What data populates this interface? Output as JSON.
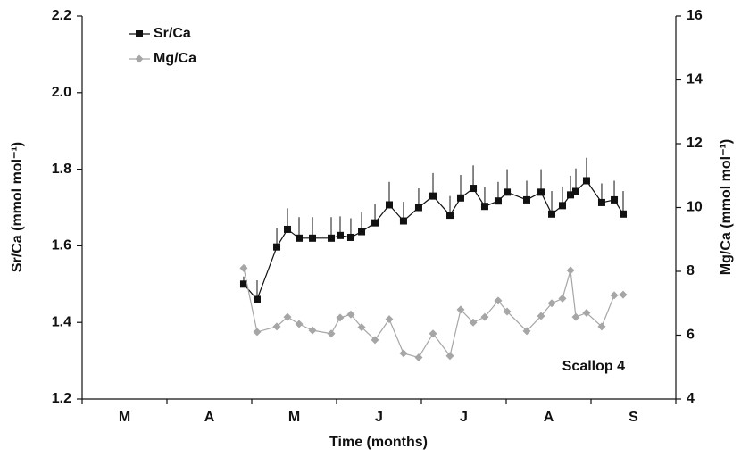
{
  "chart_data": {
    "type": "line",
    "xlabel": "Time (months)",
    "ylabel": "Sr/Ca (mmol mol⁻¹)",
    "y2label": "Mg/Ca (mmol mol⁻¹)",
    "annotation": "Scallop 4",
    "xlim": [
      0,
      7
    ],
    "xticks": [
      {
        "value": 0.5,
        "label": "M"
      },
      {
        "value": 1.5,
        "label": "A"
      },
      {
        "value": 2.5,
        "label": "M"
      },
      {
        "value": 3.5,
        "label": "J"
      },
      {
        "value": 4.5,
        "label": "J"
      },
      {
        "value": 5.5,
        "label": "A"
      },
      {
        "value": 6.5,
        "label": "S"
      }
    ],
    "ylim": [
      1.2,
      2.2
    ],
    "yticks": [
      1.2,
      1.4,
      1.6,
      1.8,
      {
        "value": 2,
        "label": "2.0"
      },
      2.2
    ],
    "y2lim": [
      4,
      16
    ],
    "y2ticks": [
      4,
      6,
      8,
      10,
      12,
      14,
      16
    ],
    "x": [
      1.905,
      2.063,
      2.295,
      2.421,
      2.558,
      2.716,
      2.937,
      3.042,
      3.168,
      3.295,
      3.453,
      3.621,
      3.789,
      3.968,
      4.137,
      4.337,
      4.463,
      4.611,
      4.747,
      4.905,
      5.011,
      5.242,
      5.411,
      5.537,
      5.663,
      5.758,
      5.821,
      5.947,
      6.126,
      6.274,
      6.379
    ],
    "series": [
      {
        "name": "Sr/Ca",
        "color": "#111111",
        "marker": "square",
        "values": [
          1.5,
          1.46,
          1.597,
          1.643,
          1.62,
          1.62,
          1.62,
          1.627,
          1.622,
          1.637,
          1.66,
          1.707,
          1.665,
          1.7,
          1.73,
          1.68,
          1.725,
          1.75,
          1.703,
          1.717,
          1.74,
          1.72,
          1.74,
          1.683,
          1.705,
          1.733,
          1.742,
          1.77,
          1.713,
          1.72,
          1.683
        ],
        "errors": [
          0.02,
          0.05,
          0.05,
          0.055,
          0.055,
          0.055,
          0.055,
          0.05,
          0.05,
          0.05,
          0.05,
          0.06,
          0.05,
          0.05,
          0.06,
          0.05,
          0.06,
          0.06,
          0.05,
          0.05,
          0.06,
          0.05,
          0.06,
          0.06,
          0.05,
          0.05,
          0.06,
          0.06,
          0.05,
          0.05,
          0.06
        ]
      },
      {
        "name": "Mg/Ca",
        "color": "#a6a6a6",
        "marker": "diamond",
        "axis": "y2",
        "values": [
          8.1,
          6.1,
          6.27,
          6.57,
          6.35,
          6.15,
          6.05,
          6.55,
          6.65,
          6.25,
          5.85,
          6.5,
          5.43,
          5.3,
          6.05,
          5.35,
          6.8,
          6.4,
          6.57,
          7.08,
          6.74,
          6.13,
          6.6,
          7.0,
          7.15,
          8.03,
          6.57,
          6.7,
          6.27,
          7.25,
          7.27
        ]
      }
    ]
  }
}
